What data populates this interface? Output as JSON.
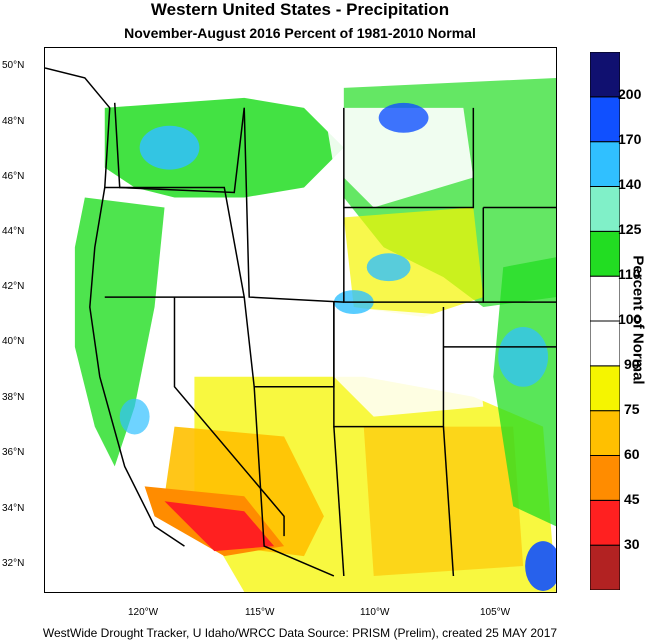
{
  "title": "Western United States - Precipitation",
  "subtitle": "November-August 2016  Percent of 1981-2010 Normal",
  "footer": "WestWide Drought Tracker, U Idaho/WRCC Data Source: PRISM (Prelim), created 25 MAY 2017",
  "colorbar": {
    "title": "Percent of Normal",
    "labels": [
      "30",
      "45",
      "60",
      "75",
      "90",
      "100",
      "110",
      "125",
      "140",
      "170",
      "200"
    ],
    "colors": [
      "#b22222",
      "#ff2020",
      "#ff8c00",
      "#ffc000",
      "#f5f500",
      "#ffffff",
      "#ffffff",
      "#22dd22",
      "#80f0c8",
      "#30c0ff",
      "#1050ff",
      "#101070"
    ]
  },
  "axes": {
    "lat_labels": [
      "50°N",
      "48°N",
      "46°N",
      "44°N",
      "42°N",
      "40°N",
      "38°N",
      "36°N",
      "34°N",
      "32°N"
    ],
    "lon_labels": [
      "120°W",
      "115°W",
      "110°W",
      "105°W"
    ]
  },
  "regions_colors": {
    "pacific_nw": "#22dd22",
    "great_basin": "#ffffff",
    "southwest": "#ffc000",
    "socal": "#ff2020",
    "rockies": "#f5f500",
    "blue_patches": "#30c0ff",
    "dark_blue": "#1050ff"
  }
}
